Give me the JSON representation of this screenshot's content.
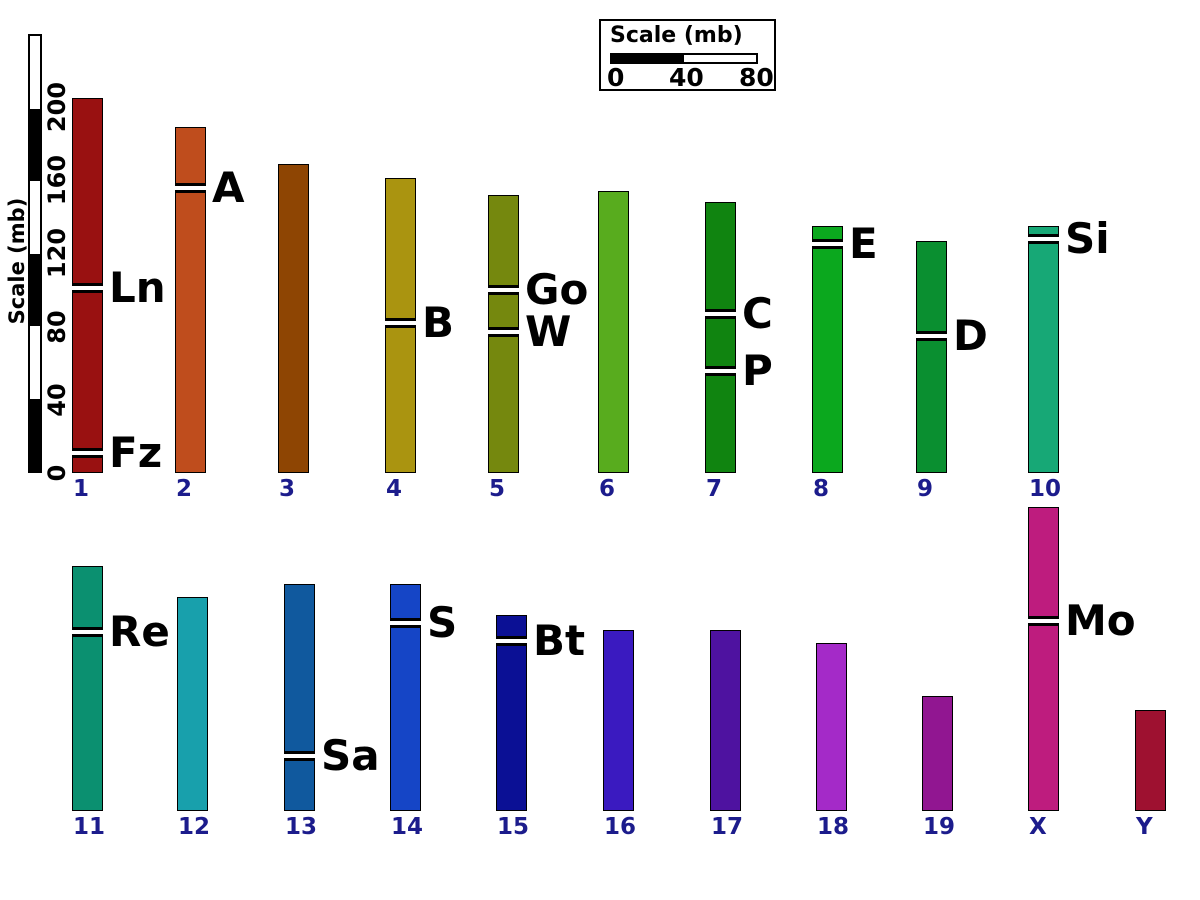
{
  "y_axis": {
    "title": "Scale (mb)",
    "unit": "mb",
    "ticks": [
      "0",
      "40",
      "80",
      "120",
      "160",
      "200"
    ],
    "tick_values": [
      0,
      40,
      80,
      120,
      160,
      200
    ],
    "max_mb": 240,
    "black_segments_mb": [
      [
        0,
        40
      ],
      [
        80,
        120
      ],
      [
        160,
        200
      ]
    ]
  },
  "legend": {
    "title": "Scale (mb)",
    "ticks": [
      "0",
      "40",
      "80"
    ],
    "tick_values": [
      0,
      40,
      80
    ],
    "black_range_mb": [
      0,
      40
    ],
    "range_mb": [
      0,
      80
    ]
  },
  "text_colors": {
    "chromosome_number": "#1c1c8c",
    "marker_label": "#000000"
  },
  "chart_data": {
    "type": "bar",
    "subtype": "karyotype-ideogram",
    "unit": "mb",
    "ylabel": "Scale (mb)",
    "ylim": [
      0,
      240
    ],
    "rows": [
      [
        "1",
        "2",
        "3",
        "4",
        "5",
        "6",
        "7",
        "8",
        "9",
        "10"
      ],
      [
        "11",
        "12",
        "13",
        "14",
        "15",
        "16",
        "17",
        "18",
        "19",
        "X",
        "Y"
      ]
    ],
    "chromosomes": [
      {
        "name": "1",
        "row": 0,
        "length_mb": 205,
        "color": "#991111",
        "markers": [
          {
            "label": "Ln",
            "pos_mb": 101
          },
          {
            "label": "Fz",
            "pos_mb": 11
          }
        ]
      },
      {
        "name": "2",
        "row": 0,
        "length_mb": 189,
        "color": "#BF4D1D",
        "markers": [
          {
            "label": "A",
            "pos_mb": 156
          }
        ]
      },
      {
        "name": "3",
        "row": 0,
        "length_mb": 169,
        "color": "#8E4503",
        "markers": []
      },
      {
        "name": "4",
        "row": 0,
        "length_mb": 161,
        "color": "#AA9410",
        "markers": [
          {
            "label": "B",
            "pos_mb": 82
          }
        ]
      },
      {
        "name": "5",
        "row": 0,
        "length_mb": 152,
        "color": "#75880E",
        "markers": [
          {
            "label": "Go",
            "pos_mb": 100
          },
          {
            "label": "W",
            "pos_mb": 77
          }
        ]
      },
      {
        "name": "6",
        "row": 0,
        "length_mb": 154,
        "color": "#58AC1E",
        "markers": []
      },
      {
        "name": "7",
        "row": 0,
        "length_mb": 148,
        "color": "#108410",
        "markers": [
          {
            "label": "C",
            "pos_mb": 87
          },
          {
            "label": "P",
            "pos_mb": 56
          }
        ]
      },
      {
        "name": "8",
        "row": 0,
        "length_mb": 135,
        "color": "#0BA81E",
        "markers": [
          {
            "label": "E",
            "pos_mb": 125
          }
        ]
      },
      {
        "name": "9",
        "row": 0,
        "length_mb": 127,
        "color": "#0A8F30",
        "markers": [
          {
            "label": "D",
            "pos_mb": 75
          }
        ]
      },
      {
        "name": "10",
        "row": 0,
        "length_mb": 135,
        "color": "#17A876",
        "markers": [
          {
            "label": "Si",
            "pos_mb": 128
          }
        ]
      },
      {
        "name": "11",
        "row": 1,
        "length_mb": 134,
        "color": "#0B9070",
        "markers": [
          {
            "label": "Re",
            "pos_mb": 98
          }
        ]
      },
      {
        "name": "12",
        "row": 1,
        "length_mb": 117,
        "color": "#18A0AC",
        "markers": []
      },
      {
        "name": "13",
        "row": 1,
        "length_mb": 124,
        "color": "#10599E",
        "markers": [
          {
            "label": "Sa",
            "pos_mb": 30
          }
        ]
      },
      {
        "name": "14",
        "row": 1,
        "length_mb": 124,
        "color": "#1545C6",
        "markers": [
          {
            "label": "S",
            "pos_mb": 103
          }
        ]
      },
      {
        "name": "15",
        "row": 1,
        "length_mb": 107,
        "color": "#0B1095",
        "markers": [
          {
            "label": "Bt",
            "pos_mb": 93
          }
        ]
      },
      {
        "name": "16",
        "row": 1,
        "length_mb": 99,
        "color": "#3A1AC0",
        "markers": []
      },
      {
        "name": "17",
        "row": 1,
        "length_mb": 99,
        "color": "#4E12A0",
        "markers": []
      },
      {
        "name": "18",
        "row": 1,
        "length_mb": 92,
        "color": "#A42AC8",
        "markers": []
      },
      {
        "name": "19",
        "row": 1,
        "length_mb": 63,
        "color": "#911691",
        "markers": []
      },
      {
        "name": "X",
        "row": 1,
        "length_mb": 166,
        "color": "#BE1C7E",
        "markers": [
          {
            "label": "Mo",
            "pos_mb": 104
          }
        ]
      },
      {
        "name": "Y",
        "row": 1,
        "length_mb": 55,
        "color": "#9E1130",
        "markers": []
      }
    ]
  }
}
